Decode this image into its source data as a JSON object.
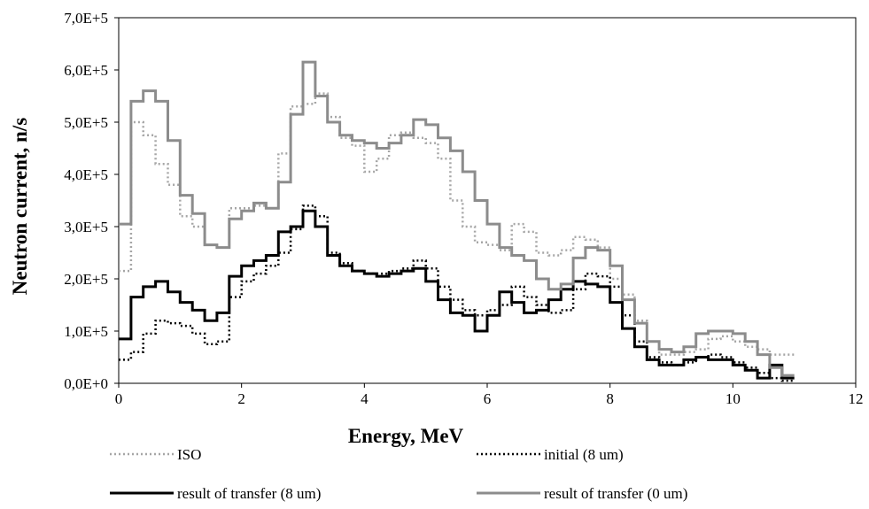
{
  "chart_data": {
    "type": "line",
    "step": true,
    "xlabel": "Energy, MeV",
    "ylabel": "Neutron current, n/s",
    "xlim": [
      0,
      12
    ],
    "ylim": [
      0,
      700000
    ],
    "x_ticks": [
      0,
      2,
      4,
      6,
      8,
      10,
      12
    ],
    "x_tick_labels": [
      "0",
      "2",
      "4",
      "6",
      "8",
      "10",
      "12"
    ],
    "y_ticks": [
      0,
      100000,
      200000,
      300000,
      400000,
      500000,
      600000,
      700000
    ],
    "y_tick_labels": [
      "0,0E+0",
      "1,0E+5",
      "2,0E+5",
      "3,0E+5",
      "4,0E+5",
      "5,0E+5",
      "6,0E+5",
      "7,0E+5"
    ],
    "grid": false,
    "legend_position": "bottom",
    "series": [
      {
        "name": "ISO",
        "color": "#a6a6a6",
        "style": "dotted",
        "x": [
          0,
          0.2,
          0.4,
          0.6,
          0.8,
          1.0,
          1.2,
          1.4,
          1.6,
          1.8,
          2.0,
          2.2,
          2.4,
          2.6,
          2.8,
          3.0,
          3.2,
          3.4,
          3.6,
          3.8,
          4.0,
          4.2,
          4.4,
          4.6,
          4.8,
          5.0,
          5.2,
          5.4,
          5.6,
          5.8,
          6.0,
          6.2,
          6.4,
          6.6,
          6.8,
          7.0,
          7.2,
          7.4,
          7.6,
          7.8,
          8.0,
          8.2,
          8.4,
          8.6,
          8.8,
          9.0,
          9.2,
          9.4,
          9.6,
          9.8,
          10.0,
          10.2,
          10.4,
          10.6,
          10.8,
          11.0
        ],
        "y": [
          215000,
          500000,
          475000,
          420000,
          380000,
          320000,
          300000,
          265000,
          260000,
          335000,
          335000,
          340000,
          335000,
          440000,
          530000,
          535000,
          555000,
          510000,
          470000,
          455000,
          405000,
          430000,
          475000,
          480000,
          470000,
          460000,
          430000,
          350000,
          300000,
          270000,
          265000,
          255000,
          305000,
          290000,
          250000,
          245000,
          255000,
          280000,
          275000,
          260000,
          200000,
          170000,
          120000,
          80000,
          55000,
          55000,
          60000,
          65000,
          85000,
          90000,
          80000,
          70000,
          65000,
          55000,
          55000,
          55000
        ]
      },
      {
        "name": "initial (8 um)",
        "color": "#000000",
        "style": "dotted",
        "x": [
          0,
          0.2,
          0.4,
          0.6,
          0.8,
          1.0,
          1.2,
          1.4,
          1.6,
          1.8,
          2.0,
          2.2,
          2.4,
          2.6,
          2.8,
          3.0,
          3.2,
          3.4,
          3.6,
          3.8,
          4.0,
          4.2,
          4.4,
          4.6,
          4.8,
          5.0,
          5.2,
          5.4,
          5.6,
          5.8,
          6.0,
          6.2,
          6.4,
          6.6,
          6.8,
          7.0,
          7.2,
          7.4,
          7.6,
          7.8,
          8.0,
          8.2,
          8.4,
          8.6,
          8.8,
          9.0,
          9.2,
          9.4,
          9.6,
          9.8,
          10.0,
          10.2,
          10.4,
          10.6,
          10.8,
          11.0
        ],
        "y": [
          45000,
          60000,
          95000,
          120000,
          115000,
          110000,
          95000,
          75000,
          80000,
          165000,
          195000,
          210000,
          225000,
          250000,
          295000,
          340000,
          320000,
          250000,
          230000,
          215000,
          210000,
          210000,
          215000,
          220000,
          235000,
          220000,
          185000,
          160000,
          140000,
          130000,
          140000,
          150000,
          185000,
          165000,
          150000,
          135000,
          140000,
          180000,
          210000,
          205000,
          185000,
          130000,
          80000,
          50000,
          40000,
          35000,
          40000,
          50000,
          55000,
          50000,
          40000,
          30000,
          20000,
          10000,
          5000,
          5000
        ]
      },
      {
        "name": "result of transfer (8 um)",
        "color": "#000000",
        "style": "solid",
        "x": [
          0,
          0.2,
          0.4,
          0.6,
          0.8,
          1.0,
          1.2,
          1.4,
          1.6,
          1.8,
          2.0,
          2.2,
          2.4,
          2.6,
          2.8,
          3.0,
          3.2,
          3.4,
          3.6,
          3.8,
          4.0,
          4.2,
          4.4,
          4.6,
          4.8,
          5.0,
          5.2,
          5.4,
          5.6,
          5.8,
          6.0,
          6.2,
          6.4,
          6.6,
          6.8,
          7.0,
          7.2,
          7.4,
          7.6,
          7.8,
          8.0,
          8.2,
          8.4,
          8.6,
          8.8,
          9.0,
          9.2,
          9.4,
          9.6,
          9.8,
          10.0,
          10.2,
          10.4,
          10.6,
          10.8,
          11.0
        ],
        "y": [
          85000,
          165000,
          185000,
          195000,
          175000,
          155000,
          140000,
          120000,
          135000,
          205000,
          225000,
          235000,
          245000,
          290000,
          300000,
          330000,
          300000,
          245000,
          225000,
          215000,
          210000,
          205000,
          210000,
          215000,
          220000,
          195000,
          160000,
          135000,
          130000,
          100000,
          130000,
          175000,
          155000,
          135000,
          140000,
          160000,
          180000,
          195000,
          190000,
          185000,
          155000,
          105000,
          70000,
          45000,
          35000,
          35000,
          45000,
          50000,
          45000,
          45000,
          35000,
          25000,
          10000,
          35000,
          10000,
          10000
        ]
      },
      {
        "name": "result of transfer (0 um)",
        "color": "#8c8c8c",
        "style": "solid",
        "x": [
          0,
          0.2,
          0.4,
          0.6,
          0.8,
          1.0,
          1.2,
          1.4,
          1.6,
          1.8,
          2.0,
          2.2,
          2.4,
          2.6,
          2.8,
          3.0,
          3.2,
          3.4,
          3.6,
          3.8,
          4.0,
          4.2,
          4.4,
          4.6,
          4.8,
          5.0,
          5.2,
          5.4,
          5.6,
          5.8,
          6.0,
          6.2,
          6.4,
          6.6,
          6.8,
          7.0,
          7.2,
          7.4,
          7.6,
          7.8,
          8.0,
          8.2,
          8.4,
          8.6,
          8.8,
          9.0,
          9.2,
          9.4,
          9.6,
          9.8,
          10.0,
          10.2,
          10.4,
          10.6,
          10.8,
          11.0
        ],
        "y": [
          305000,
          540000,
          560000,
          540000,
          465000,
          360000,
          325000,
          265000,
          260000,
          315000,
          330000,
          345000,
          335000,
          385000,
          515000,
          615000,
          550000,
          500000,
          475000,
          465000,
          460000,
          450000,
          460000,
          475000,
          505000,
          495000,
          470000,
          445000,
          405000,
          350000,
          305000,
          260000,
          245000,
          235000,
          200000,
          180000,
          190000,
          240000,
          260000,
          255000,
          225000,
          160000,
          115000,
          80000,
          65000,
          60000,
          70000,
          95000,
          100000,
          100000,
          95000,
          80000,
          55000,
          30000,
          15000,
          15000
        ]
      }
    ]
  }
}
